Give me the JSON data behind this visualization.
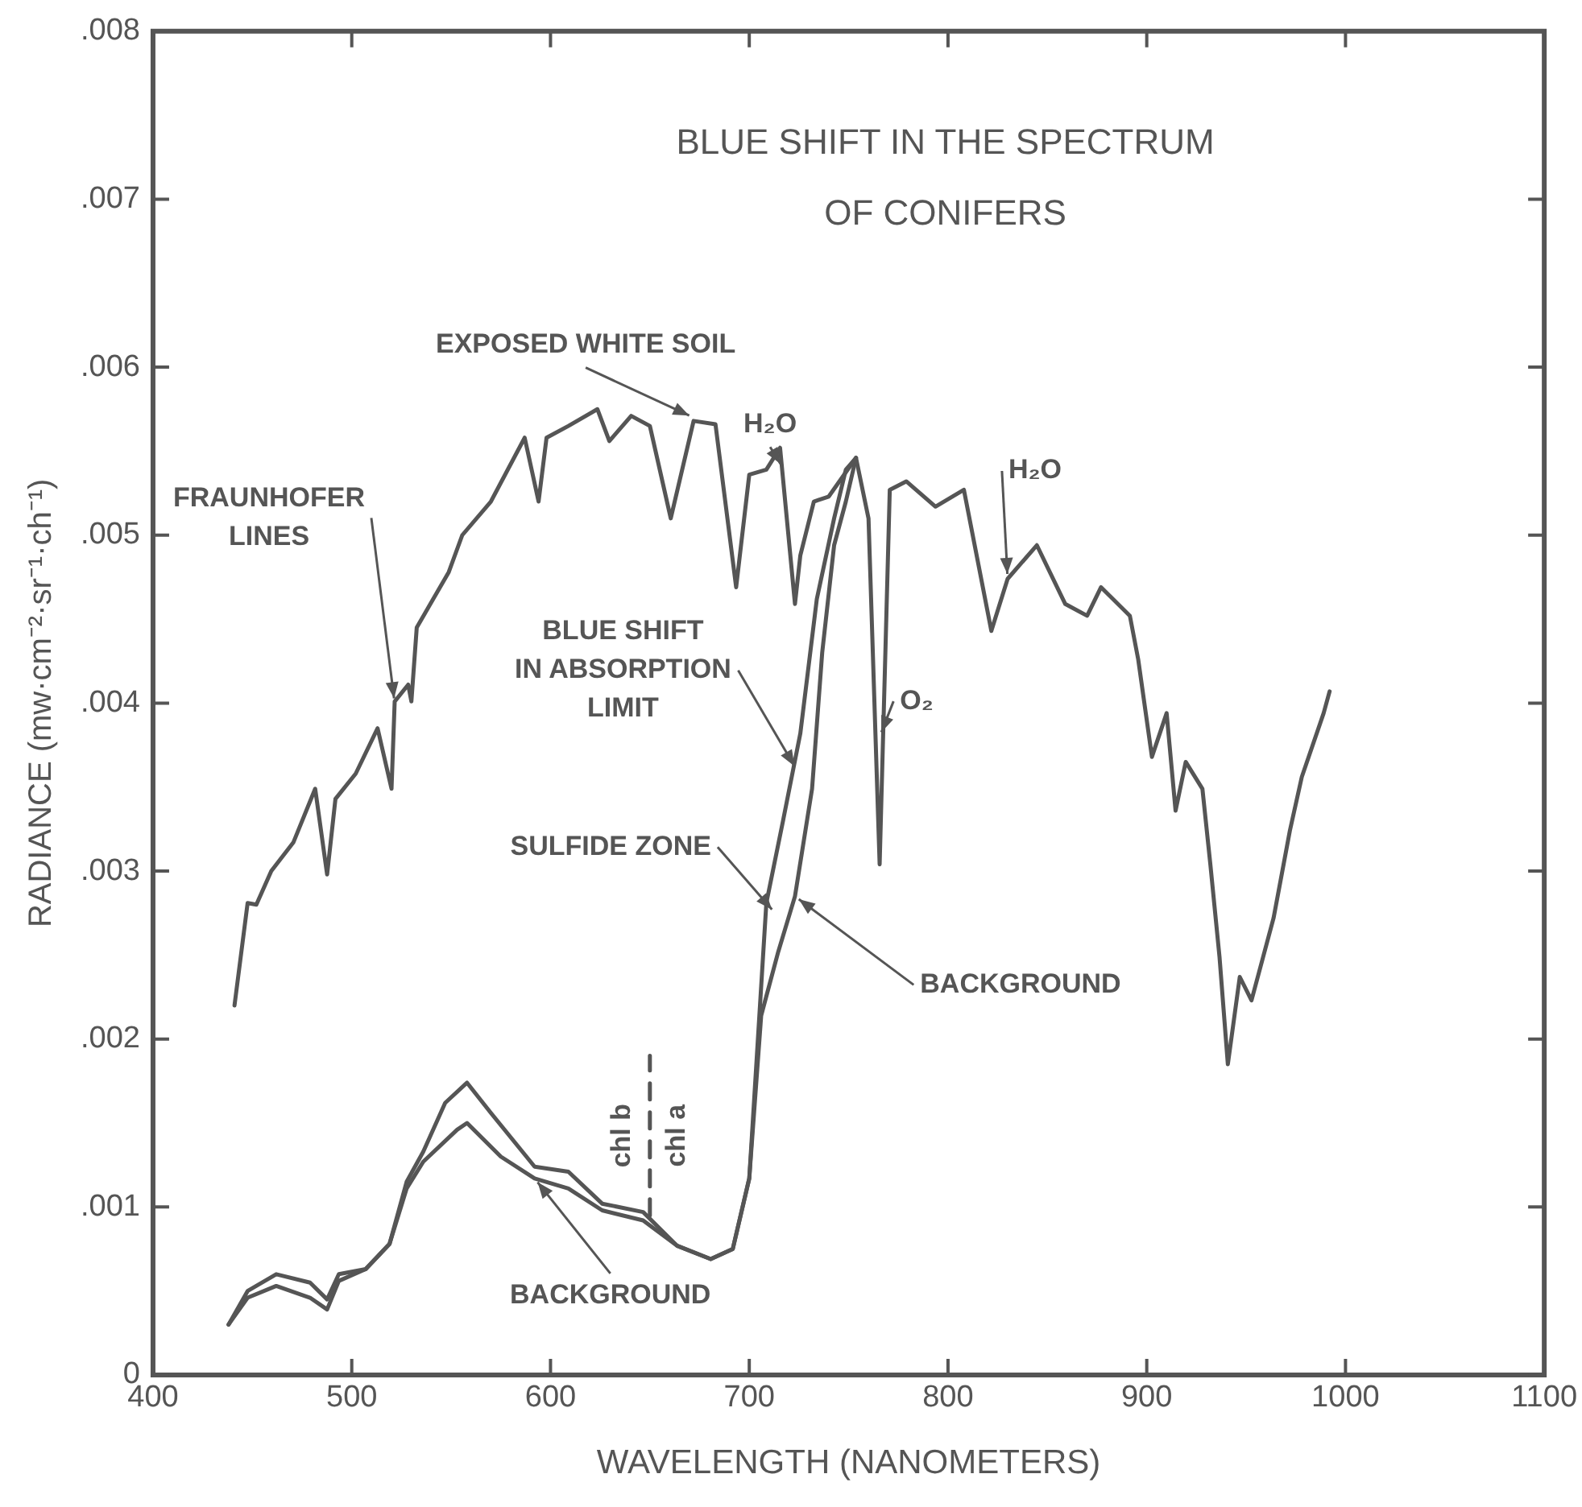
{
  "chart_data": {
    "type": "line",
    "title": "BLUE SHIFT IN THE SPECTRUM\nOF CONIFERS",
    "xlabel": "WAVELENGTH (NANOMETERS)",
    "ylabel": "RADIANCE (mw·cm⁻²·sr⁻¹·ch⁻¹)",
    "xlim": [
      400,
      1100
    ],
    "xticks": [
      400,
      500,
      600,
      700,
      800,
      900,
      1000,
      1100
    ],
    "ylim": [
      0,
      0.008
    ],
    "yticks": [
      0,
      {
        "value": 0.001,
        "label": ".001"
      },
      {
        "value": 0.002,
        "label": ".002"
      },
      {
        "value": 0.003,
        "label": ".003"
      },
      {
        "value": 0.004,
        "label": ".004"
      },
      {
        "value": 0.005,
        "label": ".005"
      },
      {
        "value": 0.006,
        "label": ".006"
      },
      {
        "value": 0.007,
        "label": ".007"
      },
      {
        "value": 0.008,
        "label": ".008"
      }
    ],
    "grid": false,
    "legend": false,
    "marker": "none",
    "line_style": "solid",
    "series": [
      {
        "color": "#555555",
        "x": [
          441,
          447.6,
          452,
          459.5,
          470.6,
          481.6,
          487.6,
          491.8,
          502,
          513,
          520,
          521.6,
          528.4,
          530,
          532.7,
          541,
          548.8,
          555.6,
          570,
          587,
          594,
          598,
          609,
          623.6,
          629.6,
          640.6,
          650,
          660.5,
          672,
          683,
          693.4,
          700,
          708.6,
          715.5,
          723,
          725.7,
          732.5,
          740,
          753.7,
          760,
          765.6,
          770.7,
          779,
          793.7,
          808,
          821.8,
          830,
          844.7,
          859,
          870,
          877,
          891.5,
          895.7,
          902.6,
          910,
          914.5,
          919.6,
          928,
          932,
          936.6,
          940.8,
          946.8,
          952.7,
          963.8,
          972,
          978,
          989,
          992
        ],
        "values": [
          0.0022,
          0.00281,
          0.0028,
          0.003,
          0.00317,
          0.00349,
          0.00298,
          0.00343,
          0.00358,
          0.00385,
          0.00349,
          0.00401,
          0.00411,
          0.00401,
          0.00445,
          0.00462,
          0.00478,
          0.005,
          0.0052,
          0.00558,
          0.0052,
          0.00558,
          0.00565,
          0.00575,
          0.00556,
          0.00571,
          0.00565,
          0.0051,
          0.00568,
          0.00566,
          0.00469,
          0.00536,
          0.00539,
          0.00552,
          0.00459,
          0.00488,
          0.0052,
          0.00523,
          0.00546,
          0.0051,
          0.00304,
          0.00527,
          0.00532,
          0.00517,
          0.00527,
          0.00443,
          0.00474,
          0.00494,
          0.00459,
          0.00452,
          0.00469,
          0.00452,
          0.00426,
          0.00368,
          0.00394,
          0.00336,
          0.00365,
          0.00349,
          0.00304,
          0.00249,
          0.00185,
          0.00237,
          0.00223,
          0.00272,
          0.00324,
          0.00356,
          0.00394,
          0.00407
        ]
      },
      {
        "color": "#555555",
        "x": [
          438,
          447.6,
          462,
          479,
          487.6,
          493.5,
          507,
          519,
          527.6,
          536,
          547,
          558,
          570,
          592,
          609,
          626,
          646.6,
          663.6,
          680.6,
          691.7,
          700,
          708.6,
          717,
          725.7,
          734,
          742.7,
          748.6,
          753.7
        ],
        "values": [
          0.0003,
          0.0005,
          0.0006,
          0.00055,
          0.00045,
          0.0006,
          0.00063,
          0.00078,
          0.00115,
          0.00133,
          0.00162,
          0.00174,
          0.00156,
          0.00124,
          0.00121,
          0.00102,
          0.00097,
          0.00077,
          0.00069,
          0.00075,
          0.00117,
          0.00281,
          0.0033,
          0.00382,
          0.00462,
          0.0051,
          0.00539,
          0.00546
        ]
      },
      {
        "color": "#555555",
        "x": [
          438,
          447.6,
          462,
          479,
          487.6,
          493.5,
          507,
          519,
          527.6,
          536,
          553,
          558,
          575,
          592,
          609,
          626,
          646.6,
          663.6,
          680.6,
          691.7,
          700,
          706,
          714.6,
          723,
          731.6,
          736.7,
          742.7,
          748.6,
          753.7
        ],
        "values": [
          0.0003,
          0.00046,
          0.00053,
          0.00046,
          0.00039,
          0.00056,
          0.00063,
          0.00078,
          0.00111,
          0.00127,
          0.00146,
          0.0015,
          0.0013,
          0.00117,
          0.00111,
          0.00098,
          0.00092,
          0.00077,
          0.00069,
          0.00075,
          0.00117,
          0.00214,
          0.00252,
          0.00285,
          0.00349,
          0.0043,
          0.00494,
          0.0052,
          0.00546
        ]
      },
      {
        "color": "#555555",
        "line_style": "dashed",
        "x": [
          650,
          650
        ],
        "values": [
          0.00095,
          0.0019
        ]
      }
    ],
    "annotations": [
      {
        "text": "EXPOSED WHITE SOIL",
        "x": 672,
        "y": 0.0057
      },
      {
        "text": "H₂O",
        "x": 717,
        "y": 0.0054
      },
      {
        "text": "H₂O",
        "x": 830,
        "y": 0.00474
      },
      {
        "text": "FRAUNHOFER\nLINES",
        "x": 521.6,
        "y": 0.004
      },
      {
        "text": "BLUE SHIFT\nIN ABSORPTION\nLIMIT",
        "x": 724,
        "y": 0.0036
      },
      {
        "text": "O₂",
        "x": 765.6,
        "y": 0.0038
      },
      {
        "text": "SULFIDE ZONE",
        "x": 713,
        "y": 0.00275
      },
      {
        "text": "BACKGROUND",
        "x": 723,
        "y": 0.00285
      },
      {
        "text": "BACKGROUND",
        "x": 592,
        "y": 0.00117
      },
      "chl b",
      "chl a"
    ]
  }
}
